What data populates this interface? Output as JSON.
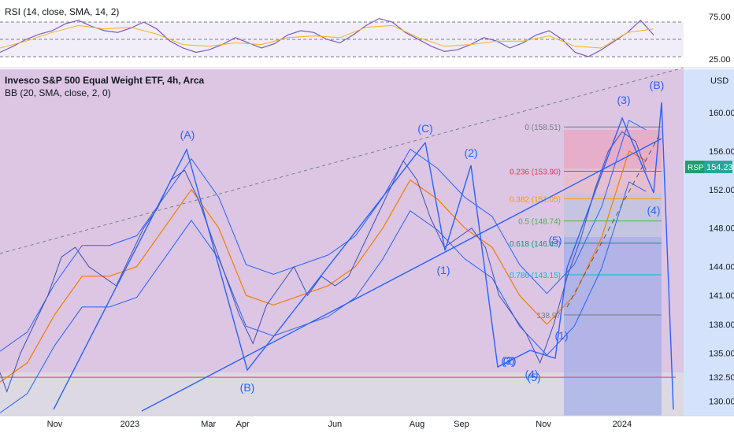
{
  "chart_data": [
    {
      "type": "line",
      "panel": "RSI",
      "title": "RSI (14, close, SMA, 14, 2)",
      "y_ticks": [
        "75.00",
        "25.00"
      ],
      "ylim": [
        15,
        85
      ],
      "levels": [
        70,
        50,
        30
      ],
      "colors": {
        "rsi": "#7e57c2",
        "sma": "#f5b31b",
        "band": "rgba(126,87,194,0.10)"
      },
      "series": [
        {
          "name": "RSI",
          "x": [
            0,
            2,
            4,
            6,
            8,
            10,
            12,
            14,
            16,
            18,
            20,
            22,
            24,
            26,
            28,
            30,
            32,
            34,
            36,
            38,
            40,
            42,
            44,
            46,
            48,
            50,
            52,
            54,
            56,
            58,
            60,
            62,
            64,
            66,
            68,
            70,
            72,
            74,
            76,
            78,
            80,
            82,
            84,
            86,
            88,
            90,
            92,
            94,
            96,
            98,
            100
          ],
          "values": [
            35,
            42,
            50,
            56,
            60,
            68,
            72,
            65,
            60,
            58,
            63,
            70,
            62,
            48,
            40,
            35,
            38,
            44,
            52,
            46,
            40,
            45,
            55,
            60,
            58,
            50,
            46,
            55,
            66,
            74,
            70,
            58,
            50,
            42,
            36,
            38,
            44,
            52,
            48,
            40,
            46,
            55,
            60,
            50,
            35,
            30,
            38,
            48,
            58,
            72,
            55
          ]
        },
        {
          "name": "SMA",
          "x": [
            0,
            4,
            8,
            12,
            16,
            20,
            24,
            28,
            32,
            36,
            40,
            44,
            48,
            52,
            56,
            60,
            64,
            68,
            72,
            76,
            80,
            84,
            88,
            92,
            96,
            100
          ],
          "values": [
            40,
            48,
            58,
            66,
            62,
            64,
            56,
            44,
            42,
            46,
            44,
            52,
            54,
            52,
            64,
            66,
            52,
            42,
            44,
            48,
            48,
            54,
            42,
            40,
            58,
            62
          ]
        }
      ]
    },
    {
      "type": "line",
      "panel": "price",
      "title": "Invesco S&P 500 Equal Weight ETF, 4h, Arca",
      "subtitle": "BB (20, SMA, close, 2, 0)",
      "currency": "USD",
      "ylim": [
        128.5,
        164.5
      ],
      "y_ticks": [
        "160.00",
        "156.00",
        "152.00",
        "148.00",
        "144.00",
        "141.00",
        "138.00",
        "135.00",
        "132.50",
        "130.00"
      ],
      "y_tick_values": [
        160,
        156,
        152,
        148,
        144,
        141,
        138,
        135,
        132.5,
        130
      ],
      "x_ticks": [
        "Nov",
        "2023",
        "Mar",
        "Apr",
        "Jun",
        "Aug",
        "Sep",
        "Nov",
        "2024"
      ],
      "x_tick_positions": [
        0.08,
        0.19,
        0.305,
        0.355,
        0.49,
        0.61,
        0.675,
        0.795,
        0.91
      ],
      "last_price": {
        "symbol": "RSP",
        "value": "154.23",
        "price": 154.23
      },
      "price_series": [
        {
          "name": "price",
          "x": [
            0,
            0.01,
            0.03,
            0.05,
            0.07,
            0.09,
            0.11,
            0.13,
            0.15,
            0.17,
            0.19,
            0.21,
            0.23,
            0.25,
            0.27,
            0.29,
            0.31,
            0.33,
            0.35,
            0.37,
            0.39,
            0.41,
            0.43,
            0.45,
            0.47,
            0.49,
            0.51,
            0.53,
            0.55,
            0.57,
            0.59,
            0.61,
            0.63,
            0.65,
            0.67,
            0.69,
            0.71,
            0.73,
            0.75,
            0.77,
            0.79,
            0.81,
            0.83,
            0.85,
            0.87,
            0.89,
            0.91,
            0.93,
            0.945
          ],
          "values": [
            133,
            131,
            135,
            138,
            141,
            145,
            146,
            144,
            143,
            142,
            145,
            148,
            150,
            153,
            154,
            151,
            147,
            143,
            139,
            136,
            140,
            142,
            144,
            141,
            143,
            142,
            143,
            146,
            149,
            152,
            155,
            153,
            149,
            146,
            147,
            148,
            146,
            141,
            139,
            137,
            134,
            138,
            143,
            147,
            152,
            156,
            158,
            157,
            154
          ]
        },
        {
          "name": "BB basis",
          "x": [
            0,
            0.04,
            0.08,
            0.12,
            0.16,
            0.2,
            0.24,
            0.28,
            0.32,
            0.36,
            0.4,
            0.44,
            0.48,
            0.52,
            0.56,
            0.6,
            0.64,
            0.68,
            0.72,
            0.76,
            0.8,
            0.84,
            0.88,
            0.92,
            0.945
          ],
          "values": [
            132,
            134,
            139,
            143,
            143,
            144,
            148,
            152,
            148,
            141,
            140,
            141,
            142,
            144,
            148,
            153,
            151,
            148,
            146,
            141,
            138,
            141,
            147,
            156,
            155
          ]
        }
      ],
      "wave_labels": [
        "(A)",
        "(B)",
        "(C)",
        "(1)",
        "(2)",
        "(3)",
        "(4)",
        "(5)",
        "(1)",
        "(2)",
        "(3)",
        "(4)",
        "(5)",
        "(B)"
      ],
      "fib_levels": [
        {
          "label": "0 (158.51)",
          "value": 158.51,
          "color": "#787b86"
        },
        {
          "label": "0.236 (153.90)",
          "value": 153.9,
          "color": "#f23645"
        },
        {
          "label": "0.382 (151.05)",
          "value": 151.05,
          "color": "#ff9800"
        },
        {
          "label": "0.5 (148.74)",
          "value": 148.74,
          "color": "#4caf50"
        },
        {
          "label": "0.618 (146.43)",
          "value": 146.43,
          "color": "#089981"
        },
        {
          "label": "0.786 (143.15)",
          "value": 143.15,
          "color": "#00bcd4"
        },
        {
          "label": "138.97",
          "value": 138.97,
          "color": "#787b86"
        }
      ],
      "horizontal_line": {
        "value": 132.5,
        "color": "#f23645"
      },
      "colors": {
        "upper_zone": "#dcc6e4",
        "lower_zone": "#d9d5e0",
        "right_zone": "#d4e3fb",
        "wave": "#2962ff",
        "price": "#3f51b5",
        "basis": "#f57c00",
        "bands": "#2962ff"
      }
    }
  ]
}
